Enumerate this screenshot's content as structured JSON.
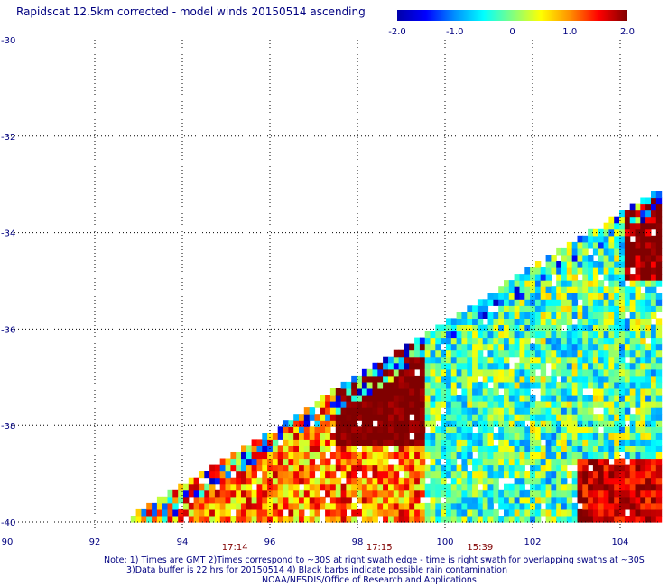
{
  "title": "Rapidscat 12.5km corrected - model winds 20150514 ascending",
  "colorbar": {
    "ticks": [
      "-2.0",
      "-1.0",
      "0",
      "1.0",
      "2.0"
    ],
    "colors": [
      "#0000aa",
      "#0000ff",
      "#0090ff",
      "#00ffff",
      "#80ff80",
      "#ffff00",
      "#ff9000",
      "#ff0000",
      "#800000"
    ]
  },
  "notes": [
    "Note: 1) Times are GMT 2)Times correspond to ~30S at right swath edge - time is right swath for overlapping swaths at ~30S",
    "3)Data buffer is 22 hrs for 20150514 4) Black barbs indicate possible rain contamination",
    "NOAA/NESDIS/Office of Research and Applications"
  ],
  "chart_data": {
    "type": "heatmap",
    "title": "Rapidscat 12.5km corrected - model winds 20150514 ascending",
    "x_ticks": [
      "90",
      "92",
      "94",
      "96",
      "98",
      "100",
      "102",
      "104"
    ],
    "y_ticks": [
      "-30",
      "-32",
      "-34",
      "-36",
      "-38",
      "-40"
    ],
    "xlim": [
      90,
      104.9
    ],
    "ylim": [
      -40,
      -30
    ],
    "value_range": [
      -2.0,
      2.0
    ],
    "grid": true,
    "time_labels": [
      {
        "text": "17:14",
        "lon": 95.2
      },
      {
        "text": "17:15",
        "lon": 98.5
      },
      {
        "text": "15:39",
        "lon": 100.8
      }
    ],
    "swath_edge": [
      [
        92.7,
        -40
      ],
      [
        104.9,
        -33.1
      ]
    ]
  }
}
